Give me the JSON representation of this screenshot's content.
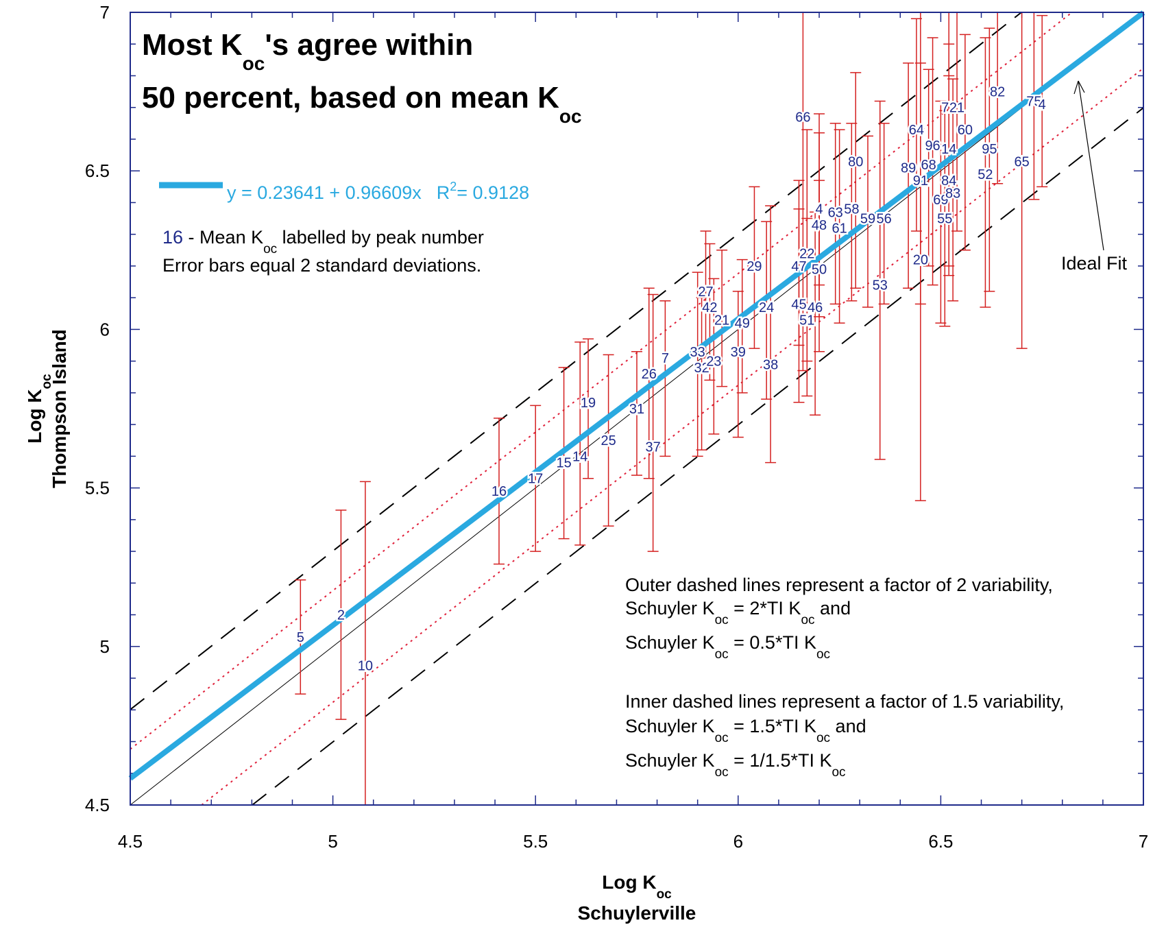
{
  "chart_data": {
    "type": "scatter",
    "title_line1_pre": "Most K",
    "title_line1_sub": "oc",
    "title_line1_post": "'s agree within",
    "title_line2_pre": "50 percent, based on mean K",
    "title_line2_sub": "oc",
    "xlabel_pre": "Log K",
    "xlabel_sub": "oc",
    "xlabel_line2": "Schuylerville",
    "ylabel_pre": "Log K",
    "ylabel_sub": "oc",
    "ylabel_line2": "Thompson Island",
    "xlim": [
      4.5,
      7
    ],
    "ylim": [
      4.5,
      7
    ],
    "x_ticks": [
      "4.5",
      "5",
      "5.5",
      "6",
      "6.5",
      "7"
    ],
    "y_ticks": [
      "4.5",
      "5",
      "5.5",
      "6",
      "6.5",
      "7"
    ],
    "regression": {
      "intercept": 0.23641,
      "slope": 0.96609,
      "equation": "y = 0.23641 + 0.96609x",
      "r2_label": "R",
      "r2_sup": "2",
      "r2_value": "= 0.9128",
      "color": "#2aa9e0"
    },
    "legend": {
      "sample_label": "16",
      "line1_mid": " - Mean K",
      "line1_sub": "oc",
      "line1_post": " labelled by peak number",
      "line2": "Error bars equal 2 standard deviations."
    },
    "ideal_fit_label": "Ideal Fit",
    "reference_lines": {
      "outer_factor": 2,
      "inner_factor": 1.5,
      "outer_color": "#000000",
      "inner_color": "#e0203a"
    },
    "notes": {
      "outer_line1": "Outer dashed lines represent a factor of 2 variability,",
      "outer_line2_pre": "Schuyler K",
      "outer_line2_sub1": "oc",
      "outer_line2_mid": " = 2*TI K",
      "outer_line2_sub2": "oc",
      "outer_line2_post": " and",
      "outer_line3_pre": "Schuyler K",
      "outer_line3_sub1": "oc",
      "outer_line3_mid": " = 0.5*TI K",
      "outer_line3_sub2": "oc",
      "inner_line1": "Inner dashed lines represent a factor of 1.5 variability,",
      "inner_line2_pre": "Schuyler K",
      "inner_line2_sub1": "oc",
      "inner_line2_mid": " = 1.5*TI K",
      "inner_line2_sub2": "oc",
      "inner_line2_post": " and",
      "inner_line3_pre": "Schuyler K",
      "inner_line3_sub1": "oc",
      "inner_line3_mid": " = 1/1.5*TI K",
      "inner_line3_sub2": "oc"
    },
    "error_bar_color": "#d42020",
    "point_label_color": "#1e2a8a",
    "points": [
      {
        "label": "5",
        "x": 4.92,
        "y": 5.03,
        "lo": 4.85,
        "hi": 5.21
      },
      {
        "label": "2",
        "x": 5.02,
        "y": 5.1,
        "lo": 4.77,
        "hi": 5.43
      },
      {
        "label": "10",
        "x": 5.08,
        "y": 4.94,
        "lo": 4.5,
        "hi": 5.52
      },
      {
        "label": "16",
        "x": 5.41,
        "y": 5.49,
        "lo": 5.26,
        "hi": 5.72
      },
      {
        "label": "17",
        "x": 5.5,
        "y": 5.53,
        "lo": 5.3,
        "hi": 5.76
      },
      {
        "label": "15",
        "x": 5.57,
        "y": 5.58,
        "lo": 5.34,
        "hi": 5.88
      },
      {
        "label": "14",
        "x": 5.61,
        "y": 5.6,
        "lo": 5.32,
        "hi": 5.96
      },
      {
        "label": "19",
        "x": 5.63,
        "y": 5.77,
        "lo": 5.53,
        "hi": 5.97
      },
      {
        "label": "25",
        "x": 5.68,
        "y": 5.65,
        "lo": 5.38,
        "hi": 5.92
      },
      {
        "label": "31",
        "x": 5.75,
        "y": 5.75,
        "lo": 5.54,
        "hi": 5.93
      },
      {
        "label": "37",
        "x": 5.79,
        "y": 5.63,
        "lo": 5.3,
        "hi": 6.11
      },
      {
        "label": "26",
        "x": 5.78,
        "y": 5.86,
        "lo": 5.53,
        "hi": 6.13
      },
      {
        "label": "7",
        "x": 5.82,
        "y": 5.91,
        "lo": 5.6,
        "hi": 6.09
      },
      {
        "label": "33",
        "x": 5.9,
        "y": 5.93,
        "lo": 5.6,
        "hi": 6.18
      },
      {
        "label": "32",
        "x": 5.91,
        "y": 5.88,
        "lo": 5.62,
        "hi": 6.1
      },
      {
        "label": "27",
        "x": 5.92,
        "y": 6.12,
        "lo": 5.91,
        "hi": 6.31
      },
      {
        "label": "42",
        "x": 5.93,
        "y": 6.07,
        "lo": 5.84,
        "hi": 6.27
      },
      {
        "label": "23",
        "x": 5.94,
        "y": 5.9,
        "lo": 5.67,
        "hi": 6.16
      },
      {
        "label": "21",
        "x": 5.96,
        "y": 6.03,
        "lo": 5.82,
        "hi": 6.25
      },
      {
        "label": "39",
        "x": 6.0,
        "y": 5.93,
        "lo": 5.66,
        "hi": 6.12
      },
      {
        "label": "49",
        "x": 6.01,
        "y": 6.02,
        "lo": 5.8,
        "hi": 6.22
      },
      {
        "label": "29",
        "x": 6.04,
        "y": 6.2,
        "lo": 5.94,
        "hi": 6.45
      },
      {
        "label": "24",
        "x": 6.07,
        "y": 6.07,
        "lo": 5.78,
        "hi": 6.34
      },
      {
        "label": "38",
        "x": 6.08,
        "y": 5.89,
        "lo": 5.58,
        "hi": 6.39
      },
      {
        "label": "47",
        "x": 6.15,
        "y": 6.2,
        "lo": 5.95,
        "hi": 6.47
      },
      {
        "label": "45",
        "x": 6.15,
        "y": 6.08,
        "lo": 5.77,
        "hi": 6.38
      },
      {
        "label": "22",
        "x": 6.17,
        "y": 6.24,
        "lo": 5.9,
        "hi": 6.63
      },
      {
        "label": "51",
        "x": 6.17,
        "y": 6.03,
        "lo": 5.79,
        "hi": 6.35
      },
      {
        "label": "66",
        "x": 6.16,
        "y": 6.67,
        "lo": 5.87,
        "hi": 7.0
      },
      {
        "label": "50",
        "x": 6.2,
        "y": 6.19,
        "lo": 5.93,
        "hi": 6.47
      },
      {
        "label": "46",
        "x": 6.19,
        "y": 6.07,
        "lo": 5.73,
        "hi": 6.37
      },
      {
        "label": "48",
        "x": 6.2,
        "y": 6.33,
        "lo": 6.04,
        "hi": 6.68
      },
      {
        "label": "4",
        "x": 6.2,
        "y": 6.38,
        "lo": 6.14,
        "hi": 6.62
      },
      {
        "label": "63",
        "x": 6.24,
        "y": 6.37,
        "lo": 6.08,
        "hi": 6.65
      },
      {
        "label": "61",
        "x": 6.25,
        "y": 6.32,
        "lo": 6.02,
        "hi": 6.63
      },
      {
        "label": "58",
        "x": 6.28,
        "y": 6.38,
        "lo": 6.09,
        "hi": 6.65
      },
      {
        "label": "80",
        "x": 6.29,
        "y": 6.53,
        "lo": 6.13,
        "hi": 6.81
      },
      {
        "label": "59",
        "x": 6.32,
        "y": 6.35,
        "lo": 6.07,
        "hi": 6.61
      },
      {
        "label": "56",
        "x": 6.36,
        "y": 6.35,
        "lo": 6.08,
        "hi": 6.65
      },
      {
        "label": "53",
        "x": 6.35,
        "y": 6.14,
        "lo": 5.59,
        "hi": 6.72
      },
      {
        "label": "64",
        "x": 6.44,
        "y": 6.63,
        "lo": 6.31,
        "hi": 6.98
      },
      {
        "label": "89",
        "x": 6.42,
        "y": 6.51,
        "lo": 6.13,
        "hi": 6.84
      },
      {
        "label": "91",
        "x": 6.45,
        "y": 6.47,
        "lo": 6.08,
        "hi": 6.84
      },
      {
        "label": "20",
        "x": 6.45,
        "y": 6.22,
        "lo": 5.46,
        "hi": 7.0
      },
      {
        "label": "68",
        "x": 6.47,
        "y": 6.52,
        "lo": 6.2,
        "hi": 6.82
      },
      {
        "label": "96",
        "x": 6.48,
        "y": 6.58,
        "lo": 6.14,
        "hi": 6.92
      },
      {
        "label": "69",
        "x": 6.5,
        "y": 6.41,
        "lo": 6.02,
        "hi": 6.72
      },
      {
        "label": "55",
        "x": 6.51,
        "y": 6.35,
        "lo": 6.01,
        "hi": 6.69
      },
      {
        "label": "72",
        "x": 6.52,
        "y": 6.7,
        "lo": 6.43,
        "hi": 7.0
      },
      {
        "label": "84",
        "x": 6.52,
        "y": 6.47,
        "lo": 6.2,
        "hi": 6.8
      },
      {
        "label": "14",
        "x": 6.52,
        "y": 6.57,
        "lo": 6.17,
        "hi": 6.9
      },
      {
        "label": "83",
        "x": 6.53,
        "y": 6.43,
        "lo": 6.09,
        "hi": 6.79
      },
      {
        "label": "21",
        "x": 6.54,
        "y": 6.7,
        "lo": 6.31,
        "hi": 7.0
      },
      {
        "label": "60",
        "x": 6.56,
        "y": 6.63,
        "lo": 6.25,
        "hi": 6.93
      },
      {
        "label": "95",
        "x": 6.62,
        "y": 6.57,
        "lo": 6.12,
        "hi": 6.95
      },
      {
        "label": "52",
        "x": 6.61,
        "y": 6.49,
        "lo": 6.07,
        "hi": 6.92
      },
      {
        "label": "82",
        "x": 6.64,
        "y": 6.75,
        "lo": 6.46,
        "hi": 7.0
      },
      {
        "label": "65",
        "x": 6.7,
        "y": 6.53,
        "lo": 5.94,
        "hi": 7.0
      },
      {
        "label": "75",
        "x": 6.73,
        "y": 6.72,
        "lo": 6.41,
        "hi": 7.0
      },
      {
        "label": "4",
        "x": 6.75,
        "y": 6.71,
        "lo": 6.45,
        "hi": 6.99
      }
    ]
  }
}
